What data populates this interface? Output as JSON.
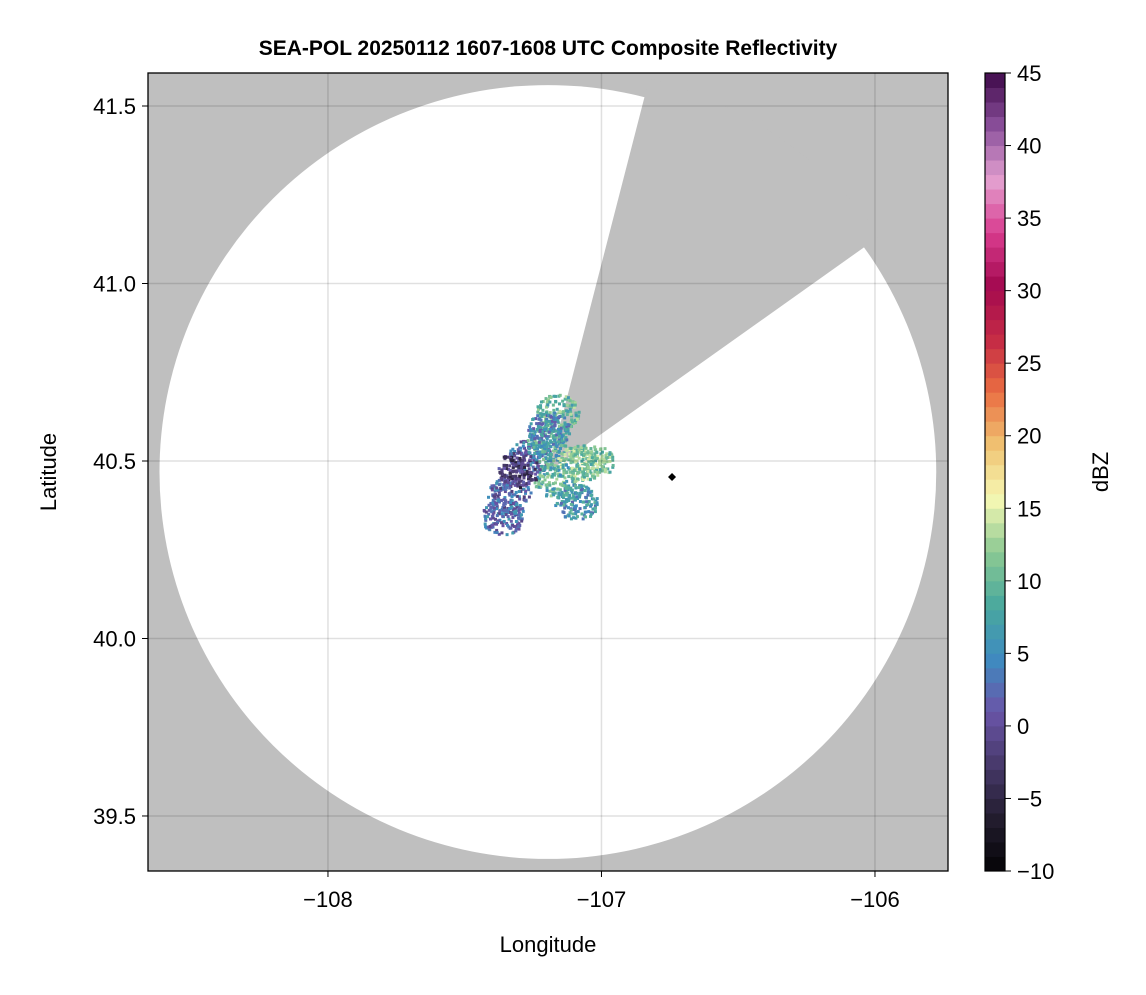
{
  "chart_data": {
    "type": "heatmap",
    "title": "SEA-POL 20250112 1607-1608 UTC Composite Reflectivity",
    "xlabel": "Longitude",
    "ylabel": "Latitude",
    "xlim": [
      -108.658,
      -105.733
    ],
    "ylim": [
      39.345,
      41.593
    ],
    "xticks": [
      -108,
      -107,
      -106
    ],
    "xtick_labels": [
      "−108",
      "−107",
      "−106"
    ],
    "yticks": [
      39.5,
      40.0,
      40.5,
      41.0,
      41.5
    ],
    "ytick_labels": [
      "39.5",
      "40.0",
      "40.5",
      "41.0",
      "41.5"
    ],
    "grid": true,
    "background_color": "#bfbfbf",
    "coverage_color": "#ffffff",
    "radar_center": {
      "lon": -107.196,
      "lat": 40.469
    },
    "radar_range_deg": {
      "lon": 1.42,
      "lat": 1.09
    },
    "blocked_sector_azimuth_deg": [
      14.4,
      54.5
    ],
    "echo_clusters": [
      {
        "lon": -107.26,
        "lat": 40.51,
        "dbz": 3
      },
      {
        "lon": -107.2,
        "lat": 40.545,
        "dbz": 8
      },
      {
        "lon": -107.16,
        "lat": 40.635,
        "dbz": 10
      },
      {
        "lon": -107.19,
        "lat": 40.587,
        "dbz": 5
      },
      {
        "lon": -107.08,
        "lat": 40.494,
        "dbz": 12
      },
      {
        "lon": -107.03,
        "lat": 40.497,
        "dbz": 11
      },
      {
        "lon": -107.17,
        "lat": 40.447,
        "dbz": 9
      },
      {
        "lon": -107.09,
        "lat": 40.382,
        "dbz": 6
      },
      {
        "lon": -107.335,
        "lat": 40.404,
        "dbz": 2
      },
      {
        "lon": -107.3,
        "lat": 40.475,
        "dbz": -2
      },
      {
        "lon": -107.36,
        "lat": 40.342,
        "dbz": 3
      }
    ],
    "marker": {
      "lon": -106.742,
      "lat": 40.455,
      "shape": "diamond",
      "color": "#000000"
    },
    "colorbar": {
      "label": "dBZ",
      "range": [
        -10,
        45
      ],
      "ticks": [
        -10,
        -5,
        0,
        5,
        10,
        15,
        20,
        25,
        30,
        35,
        40,
        45
      ],
      "tick_labels": [
        "−10",
        "−5",
        "0",
        "5",
        "10",
        "15",
        "20",
        "25",
        "30",
        "35",
        "40",
        "45"
      ],
      "colors": [
        "#050307",
        "#231d2f",
        "#47396a",
        "#6a55a8",
        "#3e8bc0",
        "#4aa99d",
        "#8cc992",
        "#f6f8b4",
        "#f0c372",
        "#ea6e42",
        "#c42a45",
        "#a40a50",
        "#d93c8f",
        "#e3a1d0",
        "#8a4f9b",
        "#3f0a4a"
      ]
    }
  }
}
